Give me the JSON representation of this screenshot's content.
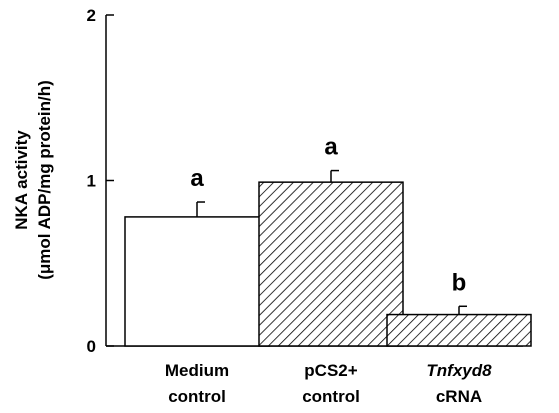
{
  "chart_data": {
    "type": "bar",
    "ylabel_line1": "NKA activity",
    "ylabel_line2": "(μmol ADP/mg protein/h)",
    "ylim": [
      0,
      2
    ],
    "yticks": [
      "0",
      "1",
      "2"
    ],
    "ytick_values": [
      0,
      1,
      2
    ],
    "grid": false,
    "categories": [
      {
        "line1": "Medium",
        "line2": "control",
        "italic_line1": false
      },
      {
        "line1": "pCS2+",
        "line2": "control",
        "italic_line1": false
      },
      {
        "line1": "Tnfxyd8",
        "line2": "cRNA",
        "italic_line1": true
      }
    ],
    "values": [
      0.78,
      0.99,
      0.19
    ],
    "errors": [
      0.09,
      0.07,
      0.05
    ],
    "significance": [
      "a",
      "a",
      "b"
    ],
    "fills": [
      "white",
      "hatched",
      "hatched"
    ]
  }
}
